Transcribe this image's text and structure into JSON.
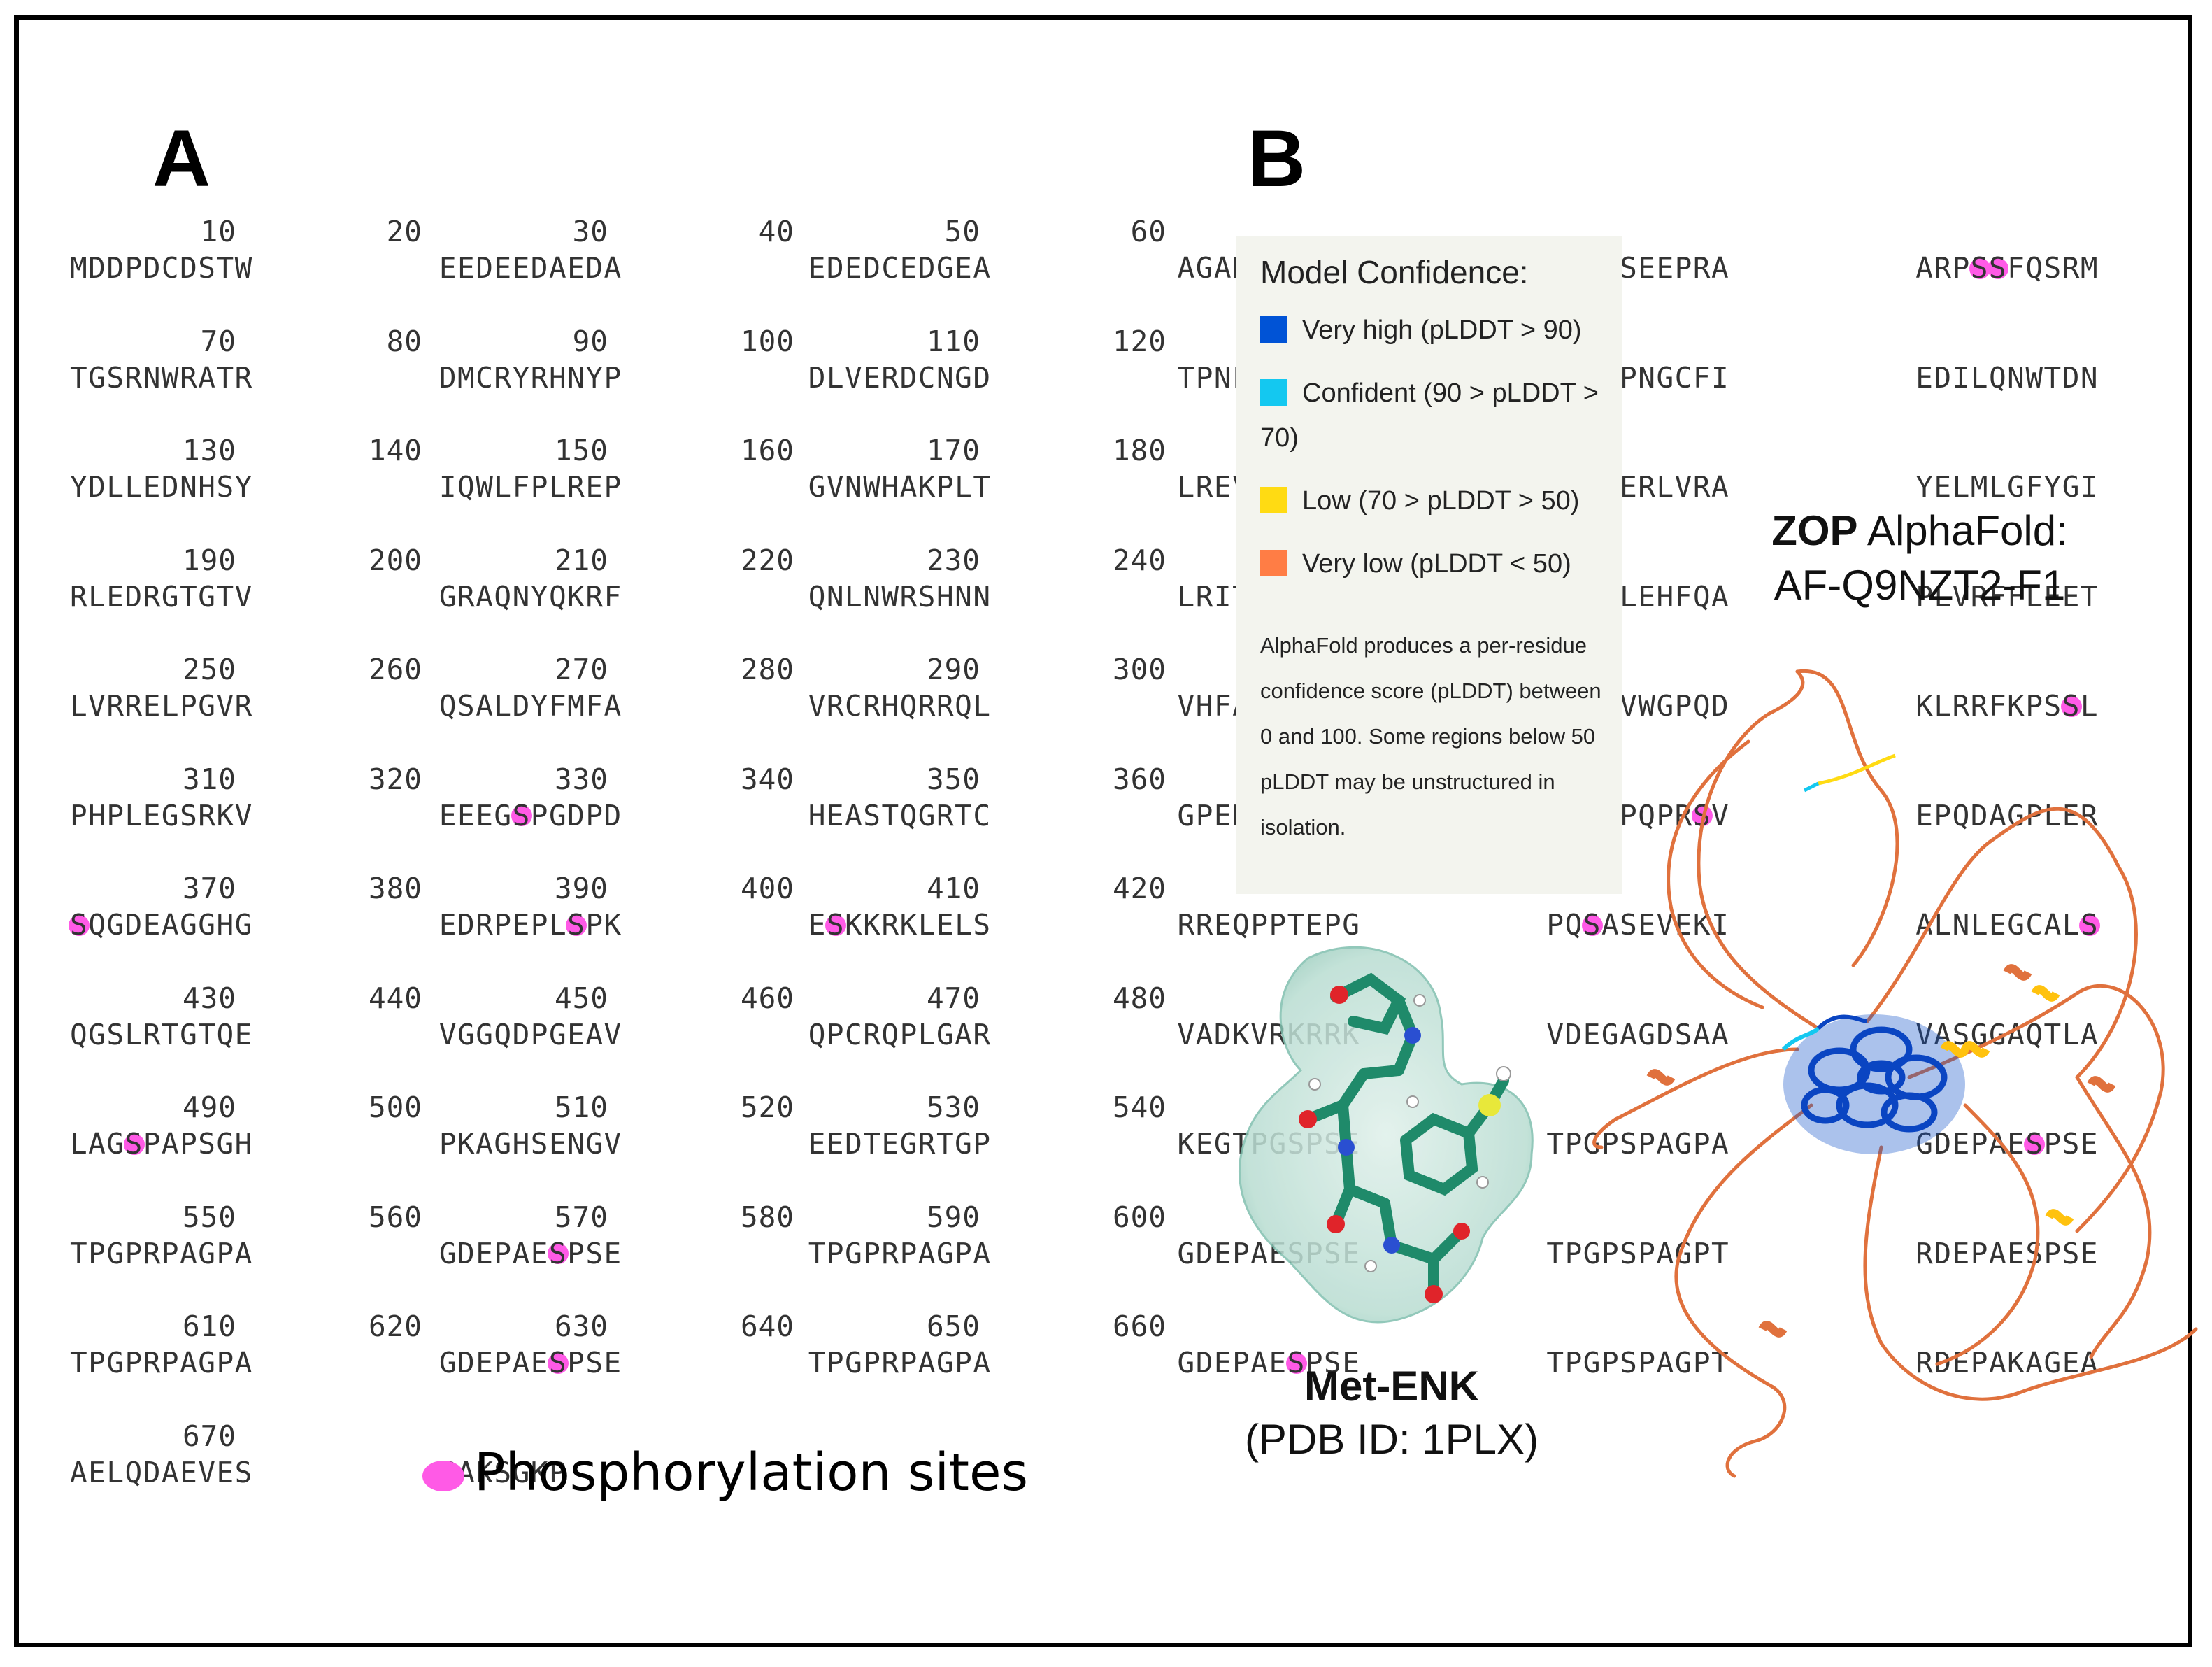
{
  "panel_a_letter": "A",
  "panel_b_letter": "B",
  "sequence_rows": [
    {
      "nums": [
        "10",
        "20",
        "30",
        "40",
        "50",
        "60"
      ],
      "blocks": [
        "MDDPDCDSTW",
        "EEDEEDAEDA",
        "EDEDCEDGEA",
        "AGARDADAGD",
        "EDEESEEPRA",
        "ARP[S][S]FQSRM"
      ]
    },
    {
      "nums": [
        "70",
        "80",
        "90",
        "100",
        "110",
        "120"
      ],
      "blocks": [
        "TGSRNWRATR",
        "DMCRYRHNYP",
        "DLVERDCNGD",
        "TPNLSFYRNE",
        "IRFLPNGCFI",
        "EDILQNWTDN"
      ]
    },
    {
      "nums": [
        "130",
        "140",
        "150",
        "160",
        "170",
        "180"
      ],
      "blocks": [
        "YDLLEDNHSY",
        "IQWLFPLREP",
        "GVNWHAKPLT",
        "LREVEVFKSS",
        "QEIQERLVRA",
        "YELMLGFYGI"
      ]
    },
    {
      "nums": [
        "190",
        "200",
        "210",
        "220",
        "230",
        "240"
      ],
      "blocks": [
        "RLEDRGTGTV",
        "GRAQNYQKRF",
        "QNLNWRSHNN",
        "LRITRILKSL",
        "GELGLEHFQA",
        "PLVRFFLEET"
      ]
    },
    {
      "nums": [
        "250",
        "260",
        "270",
        "280",
        "290",
        "300"
      ],
      "blocks": [
        "LVRRELPGVR",
        "QSALDYFMFA",
        "VRCRHQRRQL",
        "VHFAWEHFRP",
        "RCKFVWGPQD",
        "KLRRFKPS[S]L"
      ]
    },
    {
      "nums": [
        "310",
        "320",
        "330",
        "340",
        "350",
        "360"
      ],
      "blocks": [
        "PHPLEGSRKV",
        "EEEG[S]PGDPD",
        "HEASTQGRTC",
        "GPEHSKGGGR",
        "VDEGPQPR[S]V",
        "EPQDAGPLER"
      ]
    },
    {
      "nums": [
        "370",
        "380",
        "390",
        "400",
        "410",
        "420"
      ],
      "blocks": [
        "[S]QGDEAGGHG",
        "EDRPEPL[S]PK",
        "E[S]KKRKLELS",
        "RREQPPTEPG",
        "PQ[S]ASEVEKI",
        "ALNLEGCAL[S]"
      ]
    },
    {
      "nums": [
        "430",
        "440",
        "450",
        "460",
        "470",
        "480"
      ],
      "blocks": [
        "QGSLRTGTQE",
        "VGGQDPGEAV",
        "QPCRQPLGAR",
        "VADKVRKRRK",
        "VDEGAGDSAA",
        "VASGGAQTLA"
      ]
    },
    {
      "nums": [
        "490",
        "500",
        "510",
        "520",
        "530",
        "540"
      ],
      "blocks": [
        "LAG[S]PAPSGH",
        "PKAGHSENGV",
        "EEDTEGRTGP",
        "KEGTPGSPSE",
        "TPGPSPAGPA",
        "GDEPAE[S]PSE"
      ]
    },
    {
      "nums": [
        "550",
        "560",
        "570",
        "580",
        "590",
        "600"
      ],
      "blocks": [
        "TPGPRPAGPA",
        "GDEPAE[S]PSE",
        "TPGPRPAGPA",
        "GDEPAESPSE",
        "TPGPSPAGPT",
        "RDEPAESPSE"
      ]
    },
    {
      "nums": [
        "610",
        "620",
        "630",
        "640",
        "650",
        "660"
      ],
      "blocks": [
        "TPGPRPAGPA",
        "GDEPAE[S]PSE",
        "TPGPRPAGPA",
        "GDEPAE[S]PSE",
        "TPGPSPAGPT",
        "RDEPAKAGEA"
      ]
    },
    {
      "nums": [
        "670"
      ],
      "blocks": [
        "AELQDAEVES",
        "SAKSGKP"
      ]
    }
  ],
  "phospho_legend": "Phosphorylation sites",
  "phospho_color": "#ff5ae6",
  "confidence": {
    "title": "Model Confidence:",
    "items": [
      {
        "label": "Very high (pLDDT > 90)",
        "color": "#0053d6"
      },
      {
        "label": "Confident (90 > pLDDT > 70)",
        "color": "#14c8f0"
      },
      {
        "label": "Low (70 > pLDDT > 50)",
        "color": "#ffdb13"
      },
      {
        "label": "Very low (pLDDT < 50)",
        "color": "#ff7d45"
      }
    ],
    "note": "AlphaFold produces a per-residue confidence score (pLDDT) between 0 and 100. Some regions below 50 pLDDT may be unstructured in isolation."
  },
  "zop": {
    "name": "ZOP",
    "tool": "AlphaFold:",
    "id": "AF-Q9NZT2-F1"
  },
  "menk": {
    "name": "Met-ENK",
    "pdb": "(PDB ID: 1PLX)"
  }
}
